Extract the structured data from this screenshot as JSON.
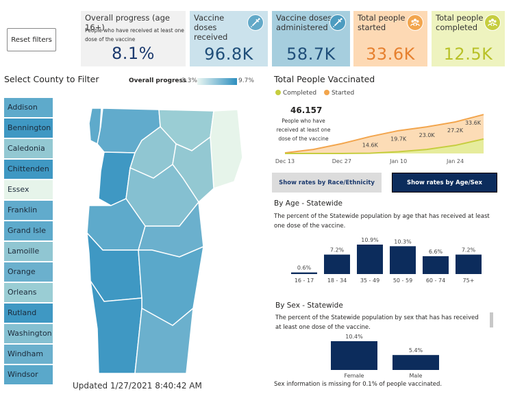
{
  "reset_button": "Reset filters",
  "kpis": {
    "progress": {
      "title": "Overall progress (age 16+)",
      "subtitle": "People who have received at least one dose of the vaccine",
      "value": "8.1%"
    },
    "doses_received": {
      "title": "Vaccine doses received",
      "value": "96.8K",
      "icon": "syringe-icon"
    },
    "doses_administered": {
      "title": "Vaccine doses administered",
      "value": "58.7K",
      "icon": "syringe-icon"
    },
    "people_started": {
      "title": "Total people started",
      "value": "33.6K",
      "icon": "people-group-icon"
    },
    "people_completed": {
      "title": "Total people completed",
      "value": "12.5K",
      "icon": "people-group-icon"
    }
  },
  "county_filter": {
    "title": "Select County to Filter",
    "legend_label": "Overall progress",
    "legend_min": "3.3%",
    "legend_max": "9.7%",
    "counties": [
      {
        "name": "Addison",
        "color": "#5eaacb"
      },
      {
        "name": "Bennington",
        "color": "#3f98c3"
      },
      {
        "name": "Caledonia",
        "color": "#93c8d2"
      },
      {
        "name": "Chittenden",
        "color": "#3f98c3"
      },
      {
        "name": "Essex",
        "color": "#e6f4ea"
      },
      {
        "name": "Franklin",
        "color": "#61abcc"
      },
      {
        "name": "Grand Isle",
        "color": "#5eaacb"
      },
      {
        "name": "Lamoille",
        "color": "#90c6d2"
      },
      {
        "name": "Orange",
        "color": "#6bb0cd"
      },
      {
        "name": "Orleans",
        "color": "#9acdd4"
      },
      {
        "name": "Rutland",
        "color": "#3f98c3"
      },
      {
        "name": "Washington",
        "color": "#85c0d1"
      },
      {
        "name": "Windham",
        "color": "#6bb0cd"
      },
      {
        "name": "Windsor",
        "color": "#5aa8ca"
      }
    ]
  },
  "updated": "Updated 1/27/2021 8:40:42 AM",
  "total_vaccinated": {
    "title": "Total People Vaccinated",
    "legend": [
      {
        "name": "Completed",
        "color": "#c6cd3f"
      },
      {
        "name": "Started",
        "color": "#f2a54d"
      }
    ],
    "callout_value": "46.157",
    "callout_text": "People who have received at least one dose of the vaccine"
  },
  "buttons": {
    "race": "Show rates by Race/Ethnicity",
    "age_sex": "Show rates by Age/Sex"
  },
  "by_age": {
    "title": "By Age - Statewide",
    "description": "The percent of the Statewide population by age that has received at least one dose of the vaccine."
  },
  "by_sex": {
    "title": "By Sex - Statewide",
    "description": "The percent of the Statewide population by sex that has has received at least one dose of the vaccine.",
    "note": "Sex information is missing for 0.1% of people vaccinated."
  },
  "colors": {
    "bar": "#0c2c5c",
    "started": "#f2a54d",
    "completed": "#c6cd3f"
  },
  "chart_data": [
    {
      "type": "area",
      "title": "Total People Vaccinated",
      "x_ticks": [
        "Dec 13",
        "Dec 27",
        "Jan 10",
        "Jan 24"
      ],
      "x": [
        "Dec 13",
        "Dec 20",
        "Dec 27",
        "Jan 3",
        "Jan 10",
        "Jan 17",
        "Jan 24",
        "Jan 27"
      ],
      "series": [
        {
          "name": "Started",
          "values": [
            0.5,
            3.5,
            8.5,
            14.6,
            19.7,
            23.0,
            27.2,
            33.6
          ]
        },
        {
          "name": "Completed",
          "values": [
            0,
            0,
            0,
            0.2,
            1.5,
            3.5,
            7.0,
            12.5
          ]
        }
      ],
      "data_labels": [
        {
          "x": "Jan 3",
          "label": "14.6K"
        },
        {
          "x": "Jan 10",
          "label": "19.7K"
        },
        {
          "x": "Jan 17",
          "label": "23.0K"
        },
        {
          "x": "Jan 24",
          "label": "27.2K"
        },
        {
          "x": "Jan 27",
          "label": "33.6K"
        }
      ],
      "ylim": [
        0,
        42
      ]
    },
    {
      "type": "bar",
      "title": "By Age - Statewide",
      "categories": [
        "16 - 17",
        "18 - 34",
        "35 - 49",
        "50 - 59",
        "60 - 74",
        "75+"
      ],
      "values": [
        0.6,
        7.2,
        10.9,
        10.3,
        6.6,
        7.2
      ],
      "labels": [
        "0.6%",
        "7.2%",
        "10.9%",
        "10.3%",
        "6.6%",
        "7.2%"
      ],
      "ylim": [
        0,
        10.9
      ]
    },
    {
      "type": "bar",
      "title": "By Sex - Statewide",
      "categories": [
        "Female",
        "Male"
      ],
      "values": [
        10.4,
        5.4
      ],
      "labels": [
        "10.4%",
        "5.4%"
      ],
      "ylim": [
        0,
        10.4
      ]
    }
  ]
}
